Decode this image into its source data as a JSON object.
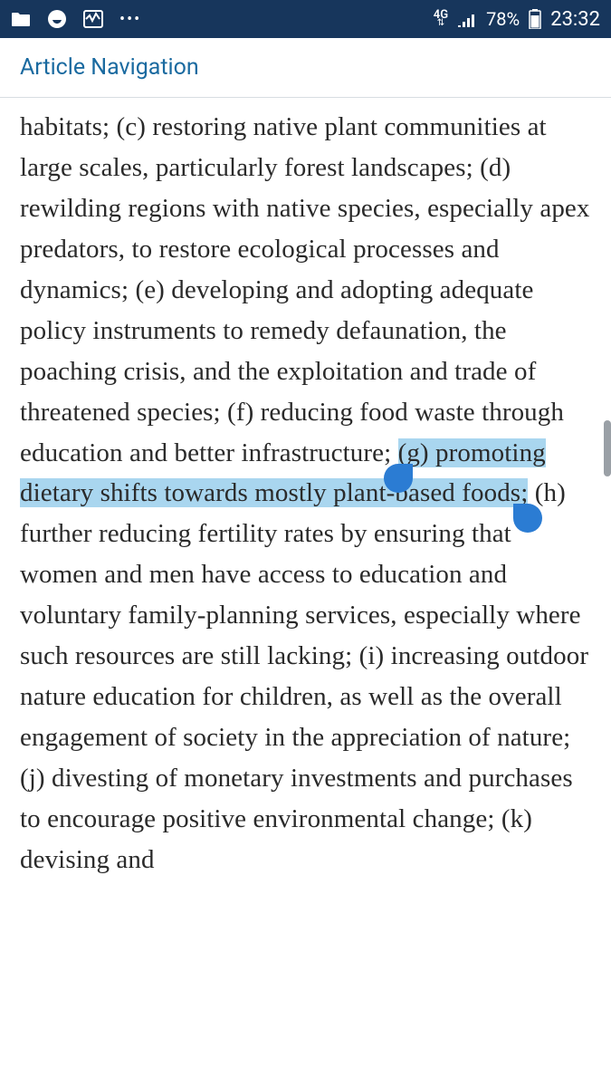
{
  "statusbar": {
    "network_label": "4G",
    "network_sub": "⇅",
    "battery_pct": "78%",
    "time": "23:32",
    "dots": "•••",
    "colors": {
      "bg": "#17365c",
      "fg": "#ffffff"
    }
  },
  "navbar": {
    "link_text": "Article Navigation",
    "link_color": "#1a6aa0"
  },
  "article": {
    "pre_highlight": "habitats; (c) restoring native plant communities at large scales, particularly forest landscapes; (d) rewilding regions with native species, especially apex predators, to restore ecological processes and dynamics; (e) developing and adopting adequate policy instruments to remedy defaunation, the poaching crisis, and the exploitation and trade of threatened species; (f) reducing food waste through education and better infrastructure; ",
    "highlight": "(g) promoting dietary shifts towards mostly plant-based foods;",
    "post_highlight": " (h) further reducing fertility rates by ensuring that women and men have access to education and voluntary family-planning services, especially where such resources are still lacking; (i) increasing outdoor nature education for children, as well as the overall engagement of society in the appreciation of nature; (j) divesting of monetary investments and purchases to encourage positive environmental change; (k) devising and",
    "highlight_bg": "#a9d6ef",
    "text_color": "#2a2a2a",
    "selection_handle_color": "#2b7cd3"
  }
}
